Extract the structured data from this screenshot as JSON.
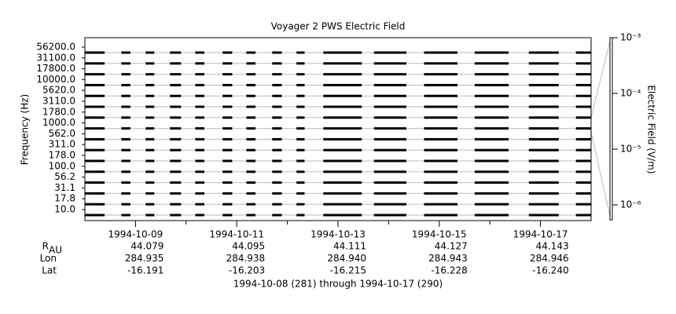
{
  "chart_data": {
    "type": "spectrogram",
    "title": "Voyager 2 PWS Electric Field",
    "y_label": "Frequency (Hz)",
    "categories": [
      "10.0",
      "17.8",
      "31.1",
      "56.2",
      "100.0",
      "178.0",
      "311.0",
      "562.0",
      "1000.0",
      "1780.0",
      "3110.0",
      "5620.0",
      "10000.0",
      "17800.0",
      "31100.0",
      "56200.0"
    ],
    "xlim": [
      281,
      291
    ],
    "xticks": [
      {
        "value": 282,
        "label": "1994-10-09"
      },
      {
        "value": 284,
        "label": "1994-10-11"
      },
      {
        "value": 286,
        "label": "1994-10-13"
      },
      {
        "value": 288,
        "label": "1994-10-15"
      },
      {
        "value": 290,
        "label": "1994-10-17"
      }
    ],
    "xminorticks": [
      283,
      285,
      287,
      289
    ],
    "segments": [
      [
        281.0,
        281.39
      ],
      [
        281.72,
        281.9
      ],
      [
        282.2,
        282.37
      ],
      [
        282.68,
        282.9
      ],
      [
        283.18,
        283.36
      ],
      [
        283.72,
        283.91
      ],
      [
        284.19,
        284.37
      ],
      [
        284.7,
        284.89
      ],
      [
        285.18,
        285.34
      ],
      [
        285.71,
        286.47
      ],
      [
        286.71,
        287.35
      ],
      [
        287.7,
        288.36
      ],
      [
        288.7,
        289.37
      ],
      [
        289.77,
        290.36
      ],
      [
        290.7,
        291.0
      ]
    ],
    "color": "#000000",
    "grid": true,
    "colorbar": {
      "label": "Electric Field (V/m)",
      "log": true,
      "zlim": [
        5.4e-07,
        0.001
      ],
      "ticks": [
        {
          "value": 0.001,
          "label": "10⁻³"
        },
        {
          "value": 0.0001,
          "label": "10⁻⁴"
        },
        {
          "value": 1e-05,
          "label": "10⁻⁵"
        },
        {
          "value": 1e-06,
          "label": "10⁻⁶"
        }
      ]
    },
    "ephemeris": [
      {
        "label": "R",
        "sub": "AU",
        "values": [
          44.079,
          44.095,
          44.111,
          44.127,
          44.143
        ]
      },
      {
        "label": "Lon",
        "values": [
          284.935,
          284.938,
          284.94,
          284.943,
          284.946
        ],
        "value_labels": [
          "284.935",
          "284.938",
          "284.940",
          "284.943",
          "284.946"
        ]
      },
      {
        "label": "Lat",
        "values": [
          -16.191,
          -16.203,
          -16.215,
          -16.228,
          -16.24
        ],
        "value_labels": [
          "-16.191",
          "-16.203",
          "-16.215",
          "-16.228",
          "-16.240"
        ]
      }
    ],
    "footer": "1994-10-08 (281) through 1994-10-17 (290)"
  }
}
